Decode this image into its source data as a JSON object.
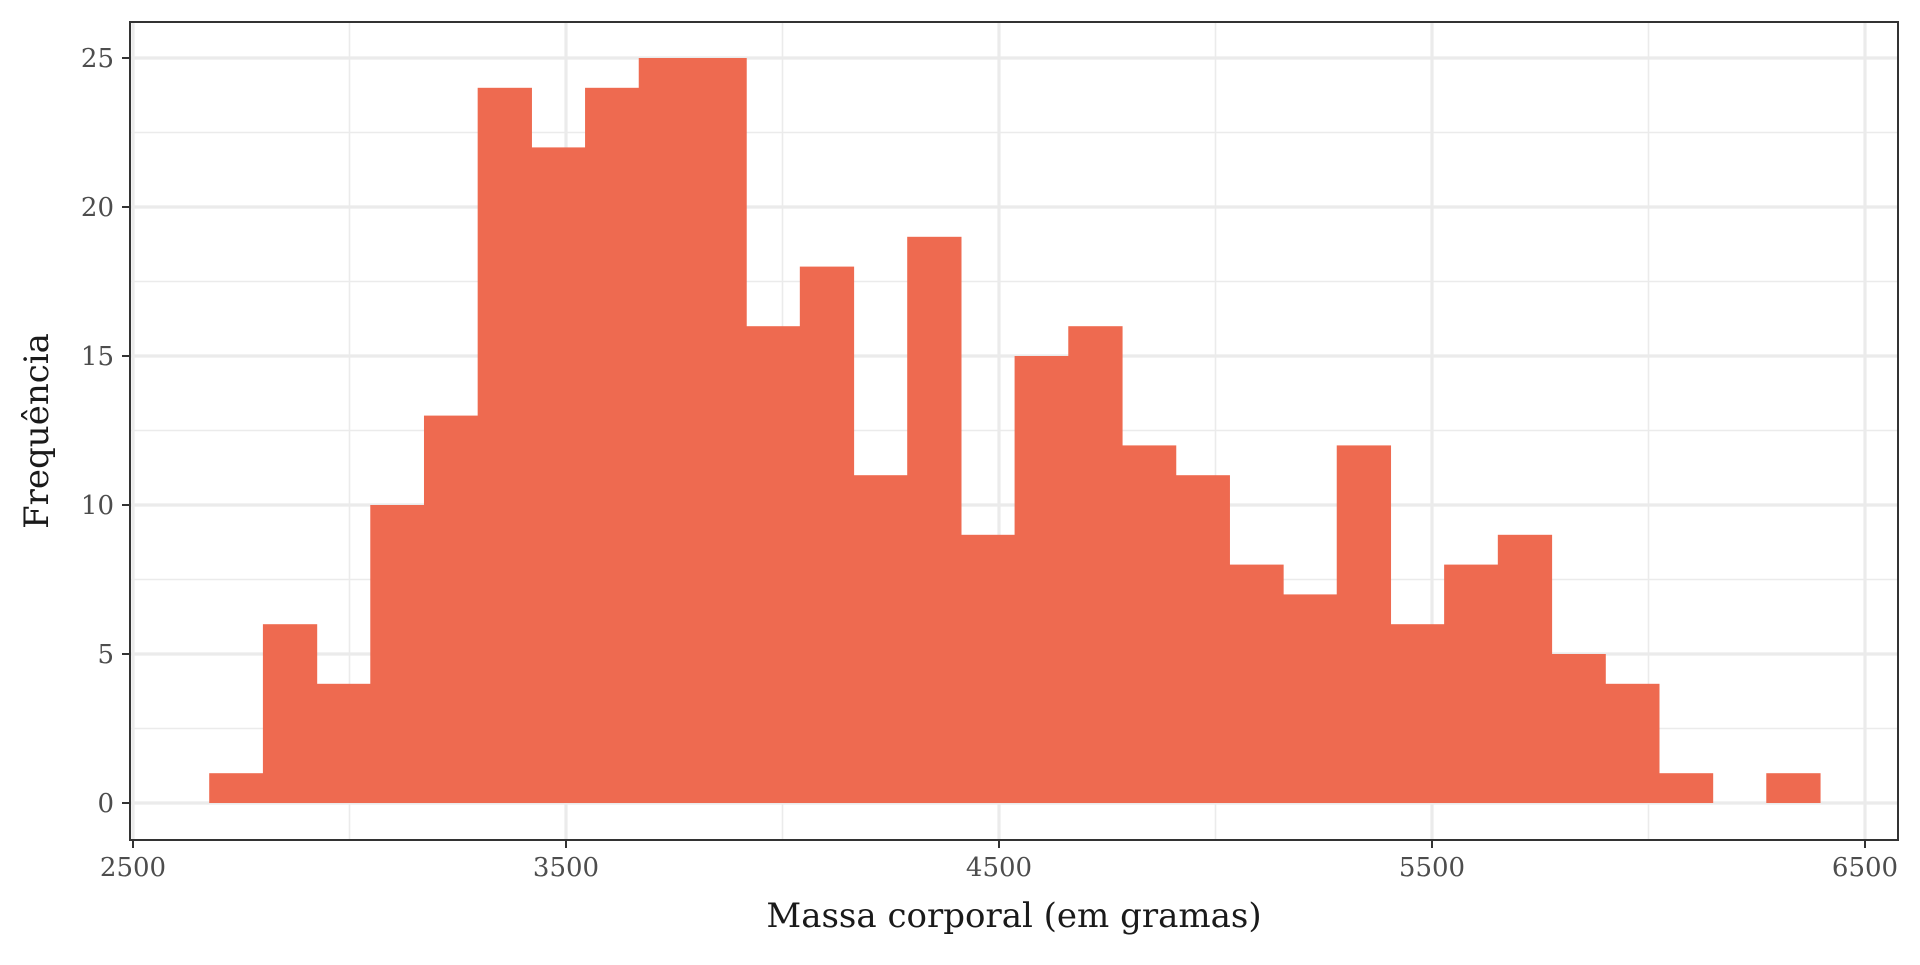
{
  "chart_data": {
    "type": "bar",
    "subtype": "histogram",
    "title": "",
    "xlabel": "Massa corporal (em gramas)",
    "ylabel": "Frequência",
    "xlim": [
      2500,
      6500
    ],
    "ylim": [
      0,
      25
    ],
    "x_ticks": [
      "2500",
      "3500",
      "4500",
      "5500",
      "6500"
    ],
    "y_ticks": [
      "0",
      "5",
      "10",
      "15",
      "20",
      "25"
    ],
    "bin_width": 124,
    "bins": [
      {
        "start": 2676,
        "end": 2800,
        "count": 1
      },
      {
        "start": 2800,
        "end": 2924,
        "count": 6
      },
      {
        "start": 2924,
        "end": 3048,
        "count": 4
      },
      {
        "start": 3048,
        "end": 3172,
        "count": 10
      },
      {
        "start": 3172,
        "end": 3296,
        "count": 13
      },
      {
        "start": 3296,
        "end": 3420,
        "count": 24
      },
      {
        "start": 3420,
        "end": 3544,
        "count": 22
      },
      {
        "start": 3544,
        "end": 3668,
        "count": 24
      },
      {
        "start": 3668,
        "end": 3792,
        "count": 25
      },
      {
        "start": 3792,
        "end": 3916,
        "count": 25
      },
      {
        "start": 3916,
        "end": 4040,
        "count": 16
      },
      {
        "start": 4040,
        "end": 4164,
        "count": 18
      },
      {
        "start": 4164,
        "end": 4288,
        "count": 11
      },
      {
        "start": 4288,
        "end": 4412,
        "count": 19
      },
      {
        "start": 4412,
        "end": 4536,
        "count": 9
      },
      {
        "start": 4536,
        "end": 4660,
        "count": 15
      },
      {
        "start": 4660,
        "end": 4784,
        "count": 16
      },
      {
        "start": 4784,
        "end": 4908,
        "count": 12
      },
      {
        "start": 4908,
        "end": 5032,
        "count": 11
      },
      {
        "start": 5032,
        "end": 5156,
        "count": 8
      },
      {
        "start": 5156,
        "end": 5280,
        "count": 7
      },
      {
        "start": 5280,
        "end": 5404,
        "count": 12
      },
      {
        "start": 5404,
        "end": 5528,
        "count": 6
      },
      {
        "start": 5528,
        "end": 5652,
        "count": 8
      },
      {
        "start": 5652,
        "end": 5776,
        "count": 9
      },
      {
        "start": 5776,
        "end": 5900,
        "count": 5
      },
      {
        "start": 5900,
        "end": 6024,
        "count": 4
      },
      {
        "start": 6024,
        "end": 6148,
        "count": 1
      },
      {
        "start": 6148,
        "end": 6272,
        "count": 0
      },
      {
        "start": 6272,
        "end": 6396,
        "count": 1
      }
    ],
    "grid": true,
    "colors": {
      "bar": "#EE6A50",
      "background": "#ffffff",
      "grid": "#ebebeb",
      "border": "#333333"
    }
  }
}
